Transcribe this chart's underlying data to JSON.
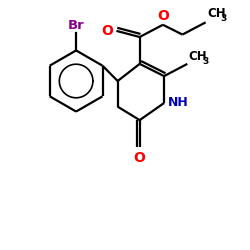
{
  "bg_color": "#ffffff",
  "bond_color": "#000000",
  "O_color": "#ff0000",
  "N_color": "#0000b3",
  "Br_color": "#8b008b",
  "figsize": [
    2.5,
    2.5
  ],
  "dpi": 100,
  "lw": 1.6,
  "xlim": [
    0,
    10
  ],
  "ylim": [
    0,
    10
  ]
}
